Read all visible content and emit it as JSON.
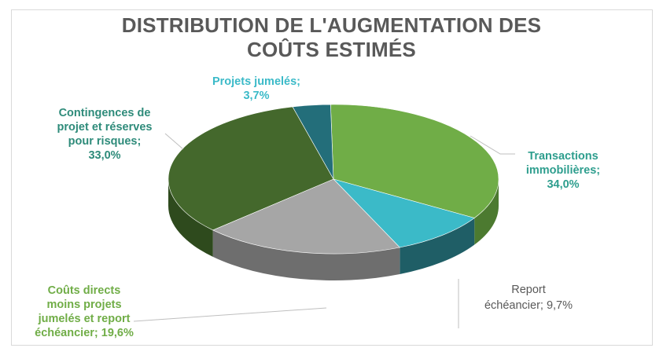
{
  "chart_data": {
    "type": "pie",
    "title_lines": [
      "DISTRIBUTION DE L'AUGMENTATION DES",
      "COÛTS ESTIMÉS"
    ],
    "slices": [
      {
        "name": "Transactions immobilières",
        "value": 34.0,
        "label_lines": [
          "Transactions",
          "immobilières;",
          "34,0%"
        ],
        "color": "#70ad47",
        "side": "#4c7a30",
        "label_color": "#2e9e8e"
      },
      {
        "name": "Report échéancier",
        "value": 9.7,
        "label_lines": [
          "Report",
          "échéancier; 9,7%"
        ],
        "color": "#3bbac8",
        "side": "#1f5e66",
        "label_color": "#595959"
      },
      {
        "name": "Coûts directs moins projets jumelés et report échéancier",
        "value": 19.6,
        "label_lines": [
          "Coûts directs",
          "moins projets",
          "jumelés et report",
          "échéancier; 19,6%"
        ],
        "color": "#a6a6a6",
        "side": "#6e6e6e",
        "label_color": "#70ad47"
      },
      {
        "name": "Contingences de projet et réserves pour risques",
        "value": 33.0,
        "label_lines": [
          "Contingences de",
          "projet et réserves",
          "pour risques;",
          "33,0%"
        ],
        "color": "#44682c",
        "side": "#2e4a1d",
        "label_color": "#2e8b7a"
      },
      {
        "name": "Projets jumelés",
        "value": 3.7,
        "label_lines": [
          "Projets jumelés;",
          "3,7%"
        ],
        "color": "#236e7a",
        "side": "#174a52",
        "label_color": "#3bbac8"
      }
    ],
    "legend": "none",
    "data_labels": "outside with leader lines"
  }
}
